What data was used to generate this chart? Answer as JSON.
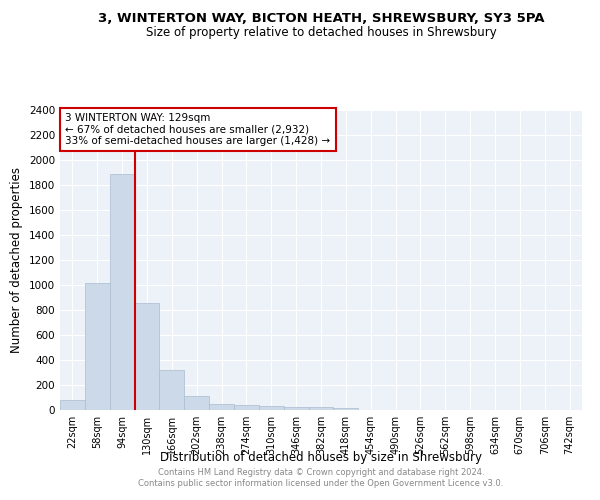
{
  "title": "3, WINTERTON WAY, BICTON HEATH, SHREWSBURY, SY3 5PA",
  "subtitle": "Size of property relative to detached houses in Shrewsbury",
  "xlabel": "Distribution of detached houses by size in Shrewsbury",
  "ylabel": "Number of detached properties",
  "annotation_line1": "3 WINTERTON WAY: 129sqm",
  "annotation_line2": "← 67% of detached houses are smaller (2,932)",
  "annotation_line3": "33% of semi-detached houses are larger (1,428) →",
  "bar_color": "#ccd9e8",
  "bar_edge_color": "#aabcce",
  "line_color": "#cc0000",
  "annotation_box_edge": "#cc0000",
  "background_color": "#edf2f8",
  "grid_color": "#ffffff",
  "categories": [
    "22sqm",
    "58sqm",
    "94sqm",
    "130sqm",
    "166sqm",
    "202sqm",
    "238sqm",
    "274sqm",
    "310sqm",
    "346sqm",
    "382sqm",
    "418sqm",
    "454sqm",
    "490sqm",
    "526sqm",
    "562sqm",
    "598sqm",
    "634sqm",
    "670sqm",
    "706sqm",
    "742sqm"
  ],
  "bar_heights": [
    80,
    1020,
    1890,
    860,
    320,
    115,
    48,
    40,
    30,
    22,
    22,
    20,
    0,
    0,
    0,
    0,
    0,
    0,
    0,
    0,
    0
  ],
  "ylim": [
    0,
    2400
  ],
  "yticks": [
    0,
    200,
    400,
    600,
    800,
    1000,
    1200,
    1400,
    1600,
    1800,
    2000,
    2200,
    2400
  ],
  "footer_line1": "Contains HM Land Registry data © Crown copyright and database right 2024.",
  "footer_line2": "Contains public sector information licensed under the Open Government Licence v3.0."
}
